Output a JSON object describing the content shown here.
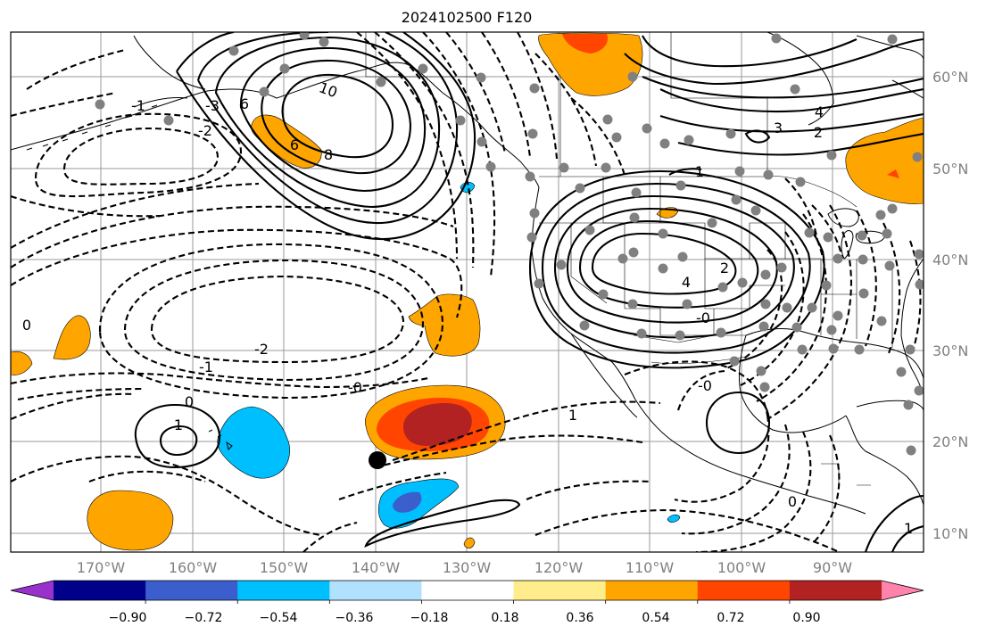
{
  "title": "2024102500 F120",
  "lat_labels": [
    "60°N",
    "50°N",
    "40°N",
    "30°N",
    "20°N",
    "10°N"
  ],
  "lon_labels": [
    "170°W",
    "160°W",
    "150°W",
    "140°W",
    "130°W",
    "120°W",
    "110°W",
    "100°W",
    "90°W"
  ],
  "colorbar": {
    "ticks": [
      "−0.90",
      "−0.72",
      "−0.54",
      "−0.36",
      "−0.18",
      "0.18",
      "0.36",
      "0.54",
      "0.72",
      "0.90"
    ],
    "colors": [
      "#9932cc",
      "#00008b",
      "#3a5fcd",
      "#00bfff",
      "#b0e2ff",
      "#ffffff",
      "#ffec8b",
      "#ffa500",
      "#ff4500",
      "#b22222",
      "#ff83aa"
    ]
  },
  "contour_labels": [
    "10",
    "8",
    "6",
    "6",
    "4",
    "3",
    "2",
    "1",
    "4",
    "2",
    "-1",
    "-2",
    "-1",
    "0",
    "-0",
    "1",
    "0",
    "1",
    "-0",
    "-0",
    "0",
    "1",
    "-3",
    "-2"
  ],
  "shading_colors": {
    "orange": "#ffa500",
    "orange_red": "#ff4500",
    "dark_red": "#b22222",
    "deep_sky_blue": "#00bfff",
    "royal_blue": "#3a5fcd",
    "light_blue": "#b0e2ff"
  },
  "marker_color": "#808080"
}
